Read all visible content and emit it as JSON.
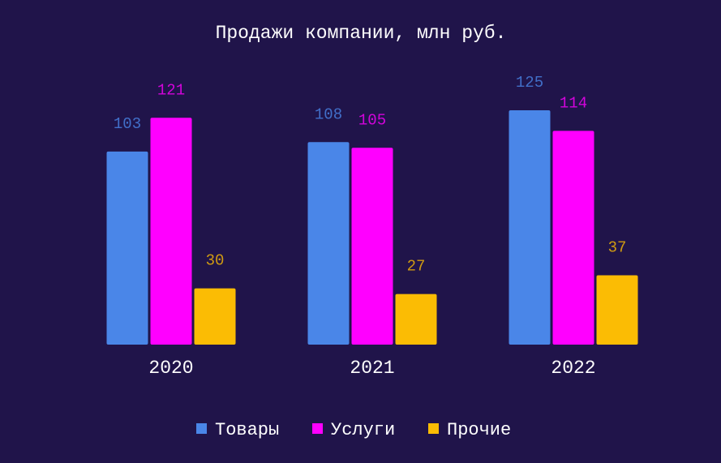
{
  "chart_data": {
    "type": "bar",
    "title": "Продажи компании, млн руб.",
    "categories": [
      "2020",
      "2021",
      "2022"
    ],
    "series": [
      {
        "name": "Товары",
        "color": "#4a86e8",
        "values": [
          103,
          108,
          125
        ]
      },
      {
        "name": "Услуги",
        "color": "#ff00ff",
        "values": [
          121,
          105,
          114
        ]
      },
      {
        "name": "Прочие",
        "color": "#fbbc04",
        "values": [
          30,
          27,
          37
        ]
      }
    ],
    "legend": "bottom"
  }
}
